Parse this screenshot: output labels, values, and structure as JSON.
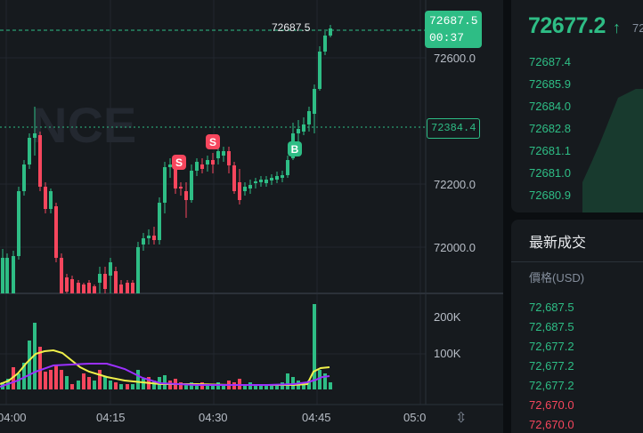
{
  "chart": {
    "current_price": "72687.5",
    "countdown": "00:37",
    "ref_price": "72384.4",
    "last_price_label": "72687.5",
    "price_axis": [
      "72600.0",
      "72200.0",
      "72000.0"
    ],
    "volume_axis": [
      "200K",
      "100K"
    ],
    "time_axis": [
      "04:00",
      "04:15",
      "04:30",
      "04:45",
      "05:0"
    ],
    "markers": [
      {
        "label": "S",
        "type": "sell"
      },
      {
        "label": "S",
        "type": "sell"
      },
      {
        "label": "B",
        "type": "buy"
      }
    ],
    "watermark": "NCE",
    "colors": {
      "up": "#2ebd85",
      "down": "#f6465d",
      "ma_yellow": "#f0f04a",
      "ma_purple": "#9b30ff"
    }
  },
  "orderbook": {
    "price": "72677.2",
    "arrow": "↑",
    "sub": "72",
    "rows": [
      "72687.4",
      "72685.9",
      "72684.0",
      "72682.8",
      "72681.1",
      "72681.0",
      "72680.9"
    ]
  },
  "trades": {
    "title": "最新成交",
    "price_header": "價格(USD)",
    "rows": [
      {
        "price": "72,687.5",
        "color": "#2ebd85"
      },
      {
        "price": "72,687.5",
        "color": "#2ebd85"
      },
      {
        "price": "72,677.2",
        "color": "#2ebd85"
      },
      {
        "price": "72,677.2",
        "color": "#2ebd85"
      },
      {
        "price": "72,677.2",
        "color": "#2ebd85"
      },
      {
        "price": "72,670.0",
        "color": "#f6465d"
      },
      {
        "price": "72,670.0",
        "color": "#f6465d"
      }
    ]
  },
  "icons": {
    "reset": "reset-axis-icon"
  }
}
